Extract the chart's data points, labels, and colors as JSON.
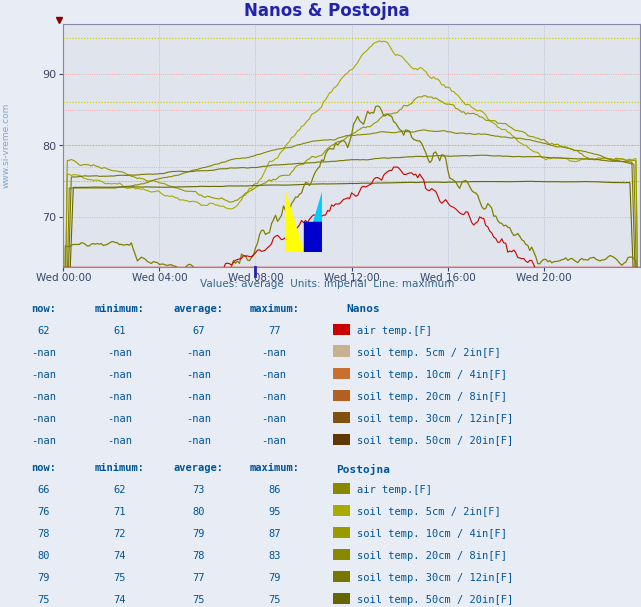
{
  "title": "Nanos & Postojna",
  "title_color": "#2222aa",
  "bg_color": "#e8ecf4",
  "plot_bg_color": "#e0e4ec",
  "ylim": [
    63,
    97
  ],
  "yticks": [
    70,
    80,
    90
  ],
  "xlim": [
    0,
    288
  ],
  "x_tick_pos": [
    0,
    48,
    96,
    144,
    192,
    240
  ],
  "x_labels": [
    "Wed 00:00",
    "Wed 04:00",
    "Wed 08:00",
    "Wed 12:00",
    "Wed 16:00",
    "Wed 20:00"
  ],
  "n_points": 288,
  "watermark_text": "www.si-vreme.com",
  "subtitle": "Values: average  Units: imperial  Line: maximum",
  "red_hlines": [
    70,
    75,
    77,
    80,
    85,
    90
  ],
  "yellow_hlines": [
    75,
    80,
    86,
    95
  ],
  "nanos_air_color": "#cc0000",
  "postojna_air_color": "#808000",
  "soil5_color": "#aaaa00",
  "soil10_color": "#999900",
  "soil20_color": "#888800",
  "soil30_color": "#777700",
  "soil50_color": "#666600",
  "nanos_soil5_color": "#c8b090",
  "nanos_soil10_color": "#c87030",
  "nanos_soil20_color": "#b06020",
  "nanos_soil30_color": "#805010",
  "nanos_soil50_color": "#603808",
  "tc": "#005599",
  "vc": "#005599",
  "table_bg": "#e8ecf4",
  "nanos_rows": [
    [
      62,
      61,
      67,
      77,
      "#cc0000",
      "air temp.[F]"
    ],
    [
      "-nan",
      "-nan",
      "-nan",
      "-nan",
      "#c8b090",
      "soil temp. 5cm / 2in[F]"
    ],
    [
      "-nan",
      "-nan",
      "-nan",
      "-nan",
      "#c87030",
      "soil temp. 10cm / 4in[F]"
    ],
    [
      "-nan",
      "-nan",
      "-nan",
      "-nan",
      "#b06020",
      "soil temp. 20cm / 8in[F]"
    ],
    [
      "-nan",
      "-nan",
      "-nan",
      "-nan",
      "#805010",
      "soil temp. 30cm / 12in[F]"
    ],
    [
      "-nan",
      "-nan",
      "-nan",
      "-nan",
      "#603808",
      "soil temp. 50cm / 20in[F]"
    ]
  ],
  "postojna_rows": [
    [
      66,
      62,
      73,
      86,
      "#888800",
      "air temp.[F]"
    ],
    [
      76,
      71,
      80,
      95,
      "#aaaa00",
      "soil temp. 5cm / 2in[F]"
    ],
    [
      78,
      72,
      79,
      87,
      "#999900",
      "soil temp. 10cm / 4in[F]"
    ],
    [
      80,
      74,
      78,
      83,
      "#888800",
      "soil temp. 20cm / 8in[F]"
    ],
    [
      79,
      75,
      77,
      79,
      "#777700",
      "soil temp. 30cm / 12in[F]"
    ],
    [
      75,
      74,
      75,
      75,
      "#666600",
      "soil temp. 50cm / 20in[F]"
    ]
  ]
}
